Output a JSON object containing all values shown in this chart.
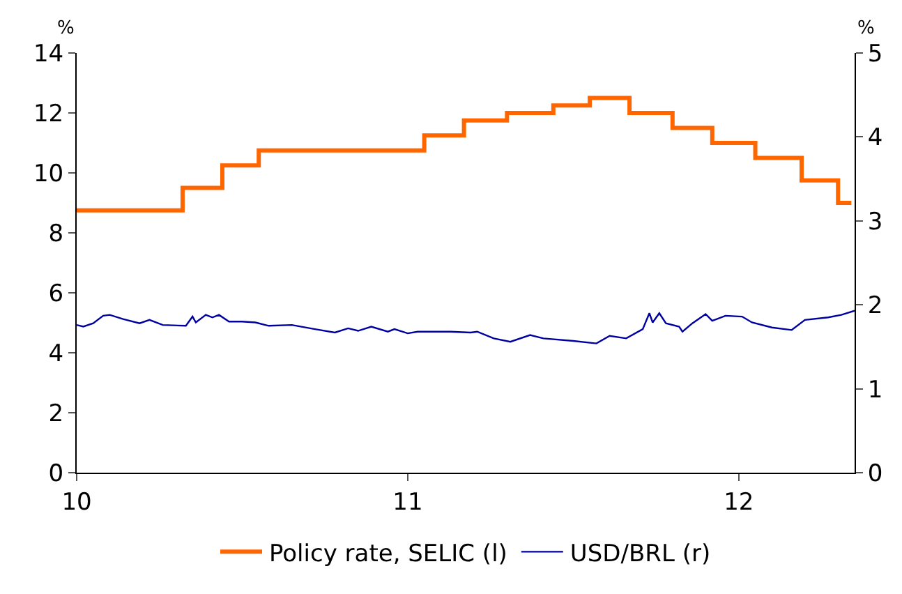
{
  "chart_data": {
    "type": "line",
    "ylabel": "%",
    "y2label": "%",
    "xlim": [
      10,
      12.35
    ],
    "xticks": [
      10,
      11,
      12
    ],
    "ylim": [
      0,
      14
    ],
    "yticks": [
      0,
      2,
      4,
      6,
      8,
      10,
      12,
      14
    ],
    "y2lim": [
      0,
      5
    ],
    "y2ticks": [
      0,
      1,
      2,
      3,
      4,
      5
    ],
    "grid": false,
    "legend": "bottom",
    "marker": "none",
    "line_style": "solid",
    "series": [
      {
        "name": "Policy rate, SELIC (l)",
        "type": "step",
        "color": "#ff6600",
        "x": [
          10,
          10.32,
          10.44,
          10.55,
          11.05,
          11.17,
          11.3,
          11.44,
          11.55,
          11.67,
          11.8,
          11.92,
          12.05,
          12.19,
          12.3,
          12.34
        ],
        "values": [
          8.75,
          9.5,
          10.25,
          10.75,
          11.25,
          11.75,
          12,
          12.25,
          12.5,
          12,
          11.5,
          11,
          10.5,
          9.75,
          9,
          9
        ]
      },
      {
        "name": "USD/BRL (r)",
        "axis": "y2",
        "color": "#0000a0",
        "x": [
          10.0,
          10.02,
          10.05,
          10.08,
          10.1,
          10.14,
          10.19,
          10.22,
          10.26,
          10.33,
          10.35,
          10.36,
          10.39,
          10.41,
          10.43,
          10.46,
          10.5,
          10.54,
          10.58,
          10.65,
          10.72,
          10.78,
          10.82,
          10.85,
          10.89,
          10.94,
          10.96,
          11.0,
          11.03,
          11.13,
          11.19,
          11.21,
          11.26,
          11.31,
          11.37,
          11.41,
          11.5,
          11.57,
          11.61,
          11.66,
          11.71,
          11.73,
          11.74,
          11.76,
          11.78,
          11.82,
          11.83,
          11.86,
          11.9,
          11.92,
          11.96,
          12.01,
          12.04,
          12.1,
          12.16,
          12.2,
          12.27,
          12.31,
          12.35
        ],
        "values": [
          1.76,
          1.74,
          1.78,
          1.87,
          1.88,
          1.83,
          1.78,
          1.82,
          1.76,
          1.75,
          1.86,
          1.79,
          1.88,
          1.85,
          1.88,
          1.8,
          1.8,
          1.79,
          1.75,
          1.76,
          1.71,
          1.67,
          1.72,
          1.69,
          1.74,
          1.68,
          1.71,
          1.66,
          1.68,
          1.68,
          1.67,
          1.68,
          1.6,
          1.56,
          1.64,
          1.6,
          1.57,
          1.54,
          1.63,
          1.6,
          1.71,
          1.9,
          1.79,
          1.9,
          1.78,
          1.74,
          1.68,
          1.78,
          1.89,
          1.81,
          1.87,
          1.86,
          1.79,
          1.73,
          1.7,
          1.82,
          1.85,
          1.88,
          1.93
        ]
      }
    ]
  }
}
